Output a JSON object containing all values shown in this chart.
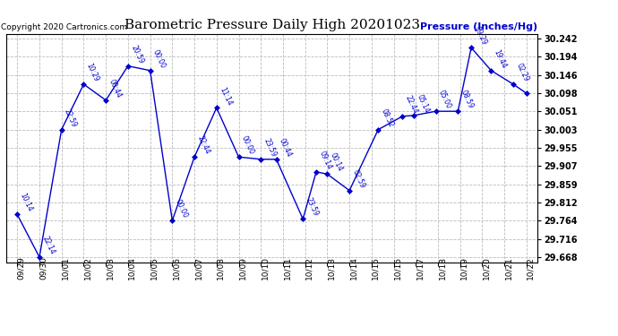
{
  "title": "Barometric Pressure Daily High 20201023",
  "ylabel": "Pressure (Inches/Hg)",
  "copyright_text": "Copyright 2020 Cartronics.com",
  "line_color": "#0000cc",
  "grid_color": "#bbbbbb",
  "ylim": [
    29.655,
    30.255
  ],
  "yticks": [
    29.668,
    29.716,
    29.764,
    29.812,
    29.859,
    29.907,
    29.955,
    30.003,
    30.051,
    30.098,
    30.146,
    30.194,
    30.242
  ],
  "x_labels": [
    "09/29",
    "09/30",
    "10/01",
    "10/02",
    "10/03",
    "10/04",
    "10/05",
    "10/06",
    "10/07",
    "10/08",
    "10/09",
    "10/10",
    "10/11",
    "10/12",
    "10/13",
    "10/14",
    "10/15",
    "10/16",
    "10/17",
    "10/18",
    "10/19",
    "10/20",
    "10/21",
    "10/22"
  ],
  "points": [
    [
      0,
      29.78,
      "10:14"
    ],
    [
      1,
      29.668,
      "22:14"
    ],
    [
      2,
      30.003,
      "22:59"
    ],
    [
      3,
      30.122,
      "10:29"
    ],
    [
      4,
      30.08,
      "00:44"
    ],
    [
      5,
      30.17,
      "20:59"
    ],
    [
      6,
      30.158,
      "00:00"
    ],
    [
      7,
      29.764,
      "00:00"
    ],
    [
      8,
      29.931,
      "22:44"
    ],
    [
      9,
      30.06,
      "11:14"
    ],
    [
      10,
      29.931,
      "00:00"
    ],
    [
      11,
      29.925,
      "23:59"
    ],
    [
      11.7,
      29.925,
      "00:44"
    ],
    [
      12.9,
      29.768,
      "23:59"
    ],
    [
      13.5,
      29.892,
      "09:14"
    ],
    [
      14,
      29.886,
      "00:14"
    ],
    [
      15,
      29.843,
      "02:59"
    ],
    [
      16.3,
      30.003,
      "08:52"
    ],
    [
      17.4,
      30.038,
      "22:44"
    ],
    [
      17.9,
      30.04,
      "05:14"
    ],
    [
      18.9,
      30.051,
      "05:00"
    ],
    [
      19.9,
      30.051,
      "08:59"
    ],
    [
      20.5,
      30.218,
      "09:29"
    ],
    [
      21.4,
      30.158,
      "19:44"
    ],
    [
      22.4,
      30.122,
      "02:29"
    ],
    [
      23,
      30.098,
      ""
    ]
  ],
  "figsize": [
    6.9,
    3.75
  ],
  "dpi": 100
}
